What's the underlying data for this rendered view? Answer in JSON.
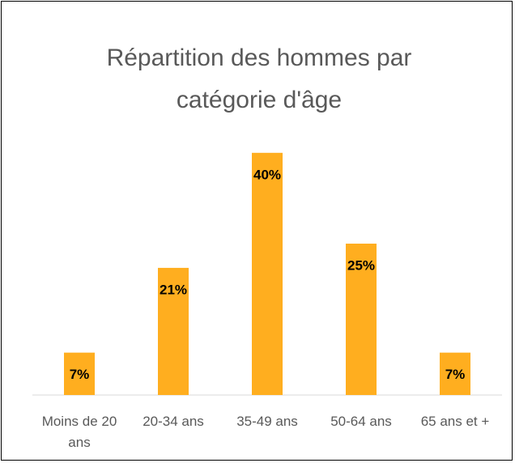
{
  "chart_data": {
    "type": "bar",
    "title": "Répartition des hommes par catégorie d'âge",
    "categories": [
      "Moins de 20 ans",
      "20-34 ans",
      "35-49 ans",
      "50-64 ans",
      "65 ans et +"
    ],
    "values": [
      7,
      21,
      40,
      25,
      7
    ],
    "value_labels": [
      "7%",
      "21%",
      "40%",
      "25%",
      "7%"
    ],
    "color": "#ffae1f"
  }
}
